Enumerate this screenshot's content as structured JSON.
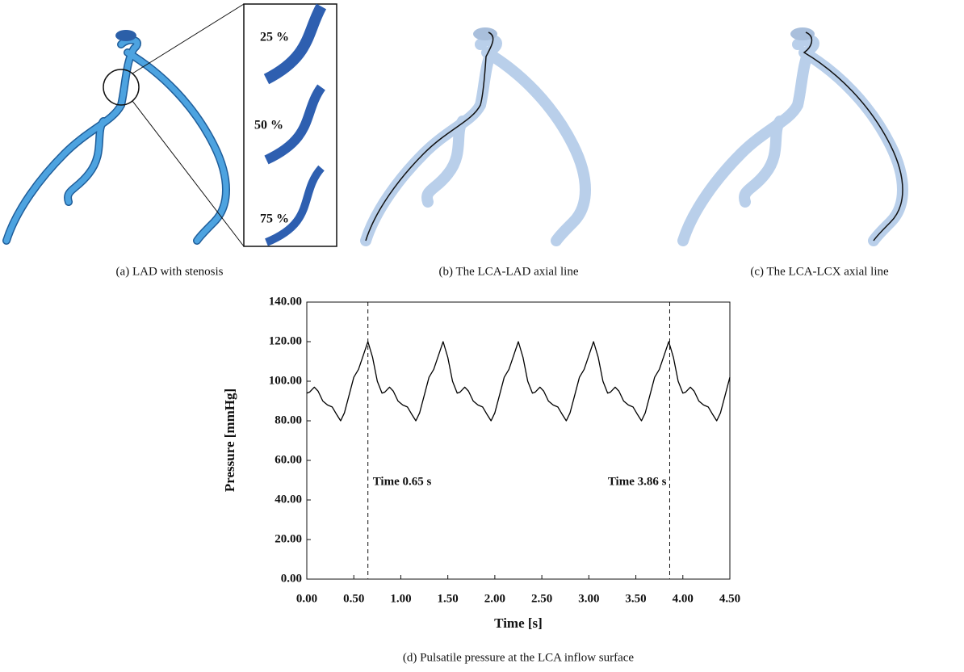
{
  "panels": [
    {
      "caption": "(a)  LAD with stenosis",
      "inset_labels": [
        "25 %",
        "50 %",
        "75 %"
      ]
    },
    {
      "caption": "(b)  The LCA-LAD axial line"
    },
    {
      "caption": "(c)  The LCA-LCX axial line"
    }
  ],
  "chart_data": {
    "type": "line",
    "caption": "(d)  Pulsatile pressure at the LCA inflow surface",
    "x_label": "Time [s]",
    "y_label": "Pressure [mmHg]",
    "xlim": [
      0,
      4.5
    ],
    "ylim": [
      0,
      140
    ],
    "xticks": [
      {
        "value": 0,
        "label": "0.00"
      },
      {
        "value": 0.5,
        "label": "0.50"
      },
      {
        "value": 1,
        "label": "1.00"
      },
      {
        "value": 1.5,
        "label": "1.50"
      },
      {
        "value": 2,
        "label": "2.00"
      },
      {
        "value": 2.5,
        "label": "2.50"
      },
      {
        "value": 3,
        "label": "3.00"
      },
      {
        "value": 3.5,
        "label": "3.50"
      },
      {
        "value": 4,
        "label": "4.00"
      },
      {
        "value": 4.5,
        "label": "4.50"
      }
    ],
    "yticks": [
      {
        "value": 0,
        "label": "0.00"
      },
      {
        "value": 20,
        "label": "20.00"
      },
      {
        "value": 40,
        "label": "40.00"
      },
      {
        "value": 60,
        "label": "60.00"
      },
      {
        "value": 80,
        "label": "80.00"
      },
      {
        "value": 100,
        "label": "100.00"
      },
      {
        "value": 120,
        "label": "120.00"
      },
      {
        "value": 140,
        "label": "140.00"
      }
    ],
    "annotations": [
      {
        "x": 0.65,
        "text": "Time 0.65 s"
      },
      {
        "x": 3.86,
        "text": "Time 3.86 s"
      }
    ],
    "series": [
      {
        "color": "#000000",
        "x": [
          0,
          0.03,
          0.08,
          0.12,
          0.17,
          0.22,
          0.27,
          0.32,
          0.36,
          0.4,
          0.45,
          0.5,
          0.55,
          0.6,
          0.65,
          0.7,
          0.75,
          0.8,
          0.83,
          0.88,
          0.92,
          0.97,
          1.02,
          1.07,
          1.12,
          1.16,
          1.2,
          1.25,
          1.3,
          1.35,
          1.4,
          1.45,
          1.5,
          1.55,
          1.6,
          1.63,
          1.68,
          1.72,
          1.77,
          1.82,
          1.87,
          1.92,
          1.96,
          2.0,
          2.05,
          2.1,
          2.15,
          2.2,
          2.25,
          2.3,
          2.35,
          2.4,
          2.43,
          2.48,
          2.52,
          2.57,
          2.62,
          2.67,
          2.72,
          2.76,
          2.8,
          2.85,
          2.9,
          2.95,
          3.0,
          3.05,
          3.1,
          3.15,
          3.2,
          3.23,
          3.28,
          3.32,
          3.37,
          3.42,
          3.47,
          3.52,
          3.56,
          3.6,
          3.65,
          3.7,
          3.75,
          3.8,
          3.85,
          3.9,
          3.95,
          4.0,
          4.03,
          4.08,
          4.12,
          4.17,
          4.22,
          4.27,
          4.32,
          4.36,
          4.4,
          4.45,
          4.5
        ],
        "values": [
          94,
          94.5,
          97,
          95,
          90,
          88,
          87,
          83,
          80,
          84,
          93,
          102,
          106,
          113,
          120,
          112,
          100,
          94,
          94.5,
          97,
          95,
          90,
          88,
          87,
          83,
          80,
          84,
          93,
          102,
          106,
          113,
          120,
          112,
          100,
          94,
          94.5,
          97,
          95,
          90,
          88,
          87,
          83,
          80,
          84,
          93,
          102,
          106,
          113,
          120,
          112,
          100,
          94,
          94.5,
          97,
          95,
          90,
          88,
          87,
          83,
          80,
          84,
          93,
          102,
          106,
          113,
          120,
          112,
          100,
          94,
          94.5,
          97,
          95,
          90,
          88,
          87,
          83,
          80,
          84,
          93,
          102,
          106,
          113,
          120,
          112,
          100,
          94,
          94.5,
          97,
          95,
          90,
          88,
          87,
          83,
          80,
          84,
          93,
          102
        ]
      }
    ]
  }
}
